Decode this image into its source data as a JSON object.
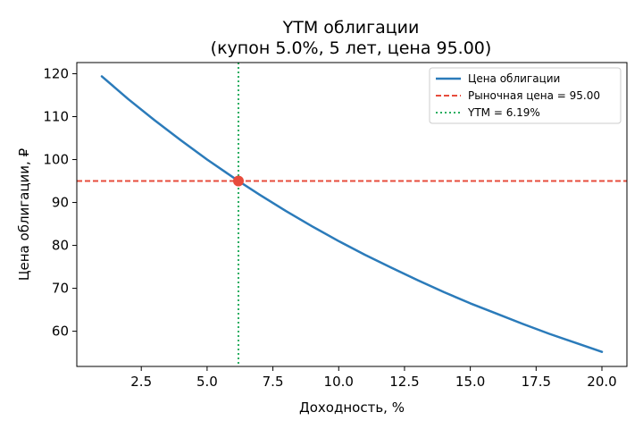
{
  "chart_data": {
    "type": "line",
    "title": "YTM облигации",
    "subtitle": "(купон 5.0%, 5 лет, цена 95.00)",
    "xlabel": "Доходность, %",
    "ylabel": "Цена облигации, ₽",
    "xlim": [
      0.05,
      20.95
    ],
    "ylim": [
      51.8,
      122.6
    ],
    "xticks": [
      2.5,
      5.0,
      7.5,
      10.0,
      12.5,
      15.0,
      17.5,
      20.0
    ],
    "xtick_labels": [
      "2.5",
      "5.0",
      "7.5",
      "10.0",
      "12.5",
      "15.0",
      "17.5",
      "20.0"
    ],
    "yticks": [
      60,
      70,
      80,
      90,
      100,
      110,
      120
    ],
    "ytick_labels": [
      "60",
      "70",
      "80",
      "90",
      "100",
      "110",
      "120"
    ],
    "grid": false,
    "legend_position": "top-right",
    "series": [
      {
        "name": "Цена облигации",
        "color": "#2b7bba",
        "style": "solid",
        "x": [
          1.0,
          2.0,
          3.0,
          4.0,
          5.0,
          6.0,
          6.19,
          7.0,
          8.0,
          9.0,
          10.0,
          11.0,
          12.0,
          13.0,
          14.0,
          15.0,
          16.0,
          17.0,
          18.0,
          19.0,
          20.0
        ],
        "y": [
          119.4,
          114.1,
          109.2,
          104.5,
          100.0,
          95.8,
          95.0,
          91.8,
          88.0,
          84.4,
          81.0,
          77.8,
          74.8,
          71.9,
          69.1,
          66.5,
          64.1,
          61.7,
          59.4,
          57.3,
          55.2
        ]
      },
      {
        "name": "Рыночная цена = 95.00",
        "color": "#e74c3c",
        "style": "dashed",
        "orientation": "horizontal",
        "value": 95.0
      },
      {
        "name": "YTM = 6.19%",
        "color": "#27ae60",
        "style": "dotted",
        "orientation": "vertical",
        "value": 6.19
      }
    ],
    "marker": {
      "x": 6.19,
      "y": 95.0,
      "color": "#e74c3c"
    }
  }
}
